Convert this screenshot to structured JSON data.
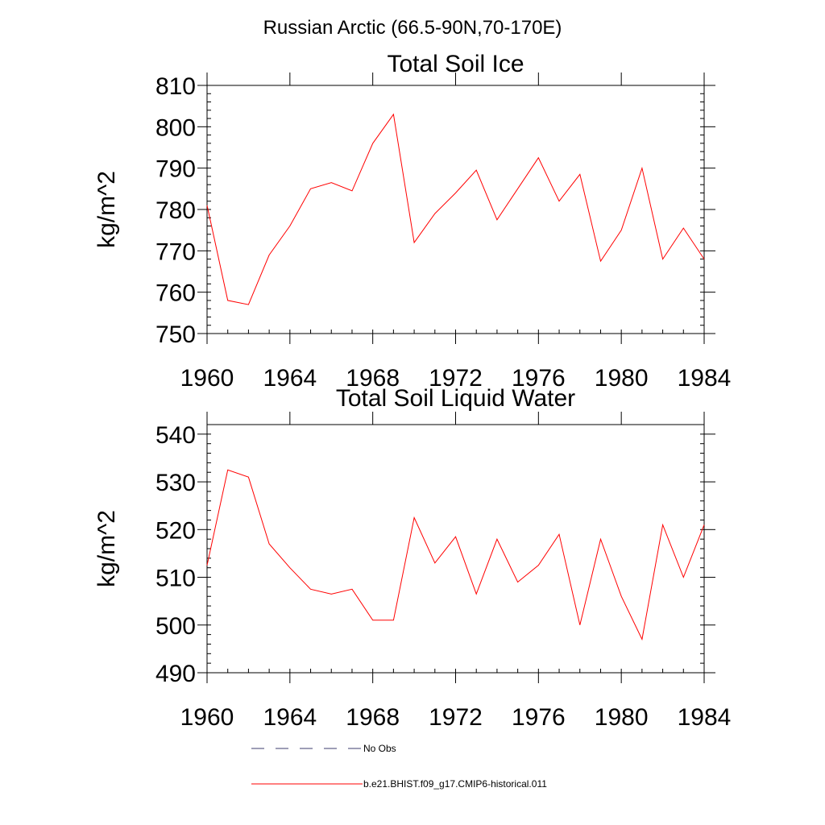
{
  "figure": {
    "title": "Russian Arctic (66.5-90N,70-170E)"
  },
  "legend": {
    "entries": [
      {
        "label": "No Obs",
        "style": "dashed",
        "color": "#3c3c6e"
      },
      {
        "label": "b.e21.BHIST.f09_g17.CMIP6-historical.011",
        "style": "solid",
        "color": "#ff0000"
      }
    ]
  },
  "chart_data": [
    {
      "type": "line",
      "title": "Total Soil Ice",
      "xlabel": "",
      "ylabel": "kg/m^2",
      "xlim": [
        1960,
        1984
      ],
      "ylim": [
        750,
        810
      ],
      "xticks": [
        1960,
        1964,
        1968,
        1972,
        1976,
        1980,
        1984
      ],
      "xtick_labels": [
        "1960",
        "1964",
        "1968",
        "1972",
        "1976",
        "1980",
        "1984"
      ],
      "yticks": [
        750,
        760,
        770,
        780,
        790,
        800,
        810
      ],
      "ytick_labels": [
        "750",
        "760",
        "770",
        "780",
        "790",
        "800",
        "810"
      ],
      "grid": false,
      "series": [
        {
          "color": "#ff0000",
          "x": [
            1960,
            1961,
            1962,
            1963,
            1964,
            1965,
            1966,
            1967,
            1968,
            1969,
            1970,
            1971,
            1972,
            1973,
            1974,
            1975,
            1976,
            1977,
            1978,
            1979,
            1980,
            1981,
            1982,
            1983,
            1984
          ],
          "values": [
            781,
            758,
            757,
            769,
            776,
            785,
            786.5,
            784.5,
            796,
            803,
            772,
            779,
            784,
            789.5,
            777.5,
            785,
            792.5,
            782,
            788.5,
            767.5,
            775,
            790,
            768,
            775.5,
            768
          ]
        }
      ]
    },
    {
      "type": "line",
      "title": "Total Soil Liquid Water",
      "xlabel": "",
      "ylabel": "kg/m^2",
      "xlim": [
        1960,
        1984
      ],
      "ylim": [
        490,
        542
      ],
      "xticks": [
        1960,
        1964,
        1968,
        1972,
        1976,
        1980,
        1984
      ],
      "xtick_labels": [
        "1960",
        "1964",
        "1968",
        "1972",
        "1976",
        "1980",
        "1984"
      ],
      "yticks": [
        490,
        500,
        510,
        520,
        530,
        540
      ],
      "ytick_labels": [
        "490",
        "500",
        "510",
        "520",
        "530",
        "540"
      ],
      "grid": false,
      "series": [
        {
          "color": "#ff0000",
          "x": [
            1960,
            1961,
            1962,
            1963,
            1964,
            1965,
            1966,
            1967,
            1968,
            1969,
            1970,
            1971,
            1972,
            1973,
            1974,
            1975,
            1976,
            1977,
            1978,
            1979,
            1980,
            1981,
            1982,
            1983,
            1984
          ],
          "values": [
            512.5,
            532.5,
            531,
            517,
            512,
            507.5,
            506.5,
            507.5,
            501,
            501,
            522.5,
            513,
            518.5,
            506.5,
            518,
            509,
            512.5,
            519,
            500,
            518,
            506,
            497,
            521,
            510,
            521
          ]
        }
      ]
    }
  ]
}
